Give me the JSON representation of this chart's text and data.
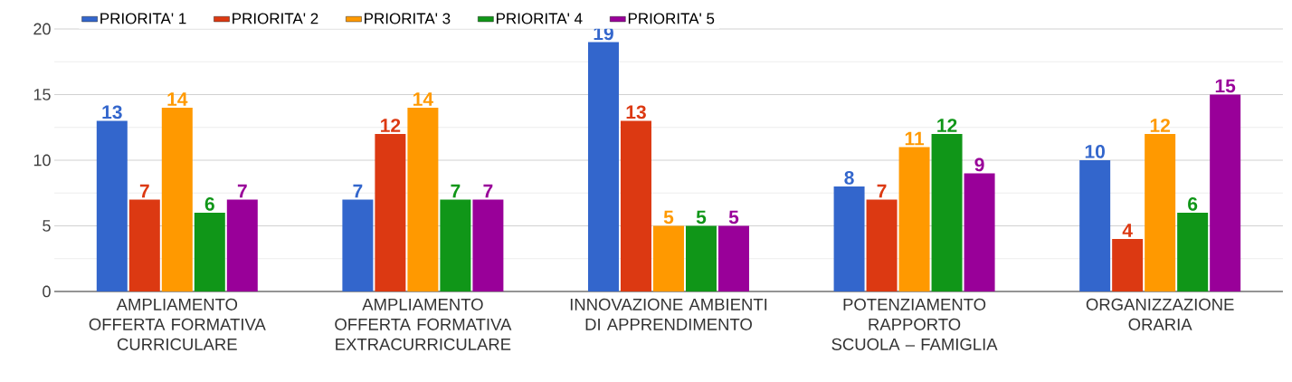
{
  "chart_data": {
    "type": "bar",
    "categories": [
      "AMPLIAMENTO OFFERTA FORMATIVA CURRICULARE",
      "AMPLIAMENTO OFFERTA FORMATIVA EXTRACURRICULARE",
      "INNOVAZIONE AMBIENTI DI APPRENDIMENTO",
      "POTENZIAMENTO RAPPORTO SCUOLA – FAMIGLIA",
      "ORGANIZZAZIONE ORARIA"
    ],
    "series": [
      {
        "name": "PRIORITA' 1",
        "color": "#3366cc",
        "values": [
          13,
          7,
          19,
          8,
          10
        ]
      },
      {
        "name": "PRIORITA' 2",
        "color": "#dc3912",
        "values": [
          7,
          12,
          13,
          7,
          4
        ]
      },
      {
        "name": "PRIORITA' 3",
        "color": "#ff9900",
        "values": [
          14,
          14,
          5,
          11,
          12
        ]
      },
      {
        "name": "PRIORITA' 4",
        "color": "#109618",
        "values": [
          6,
          7,
          5,
          12,
          6
        ]
      },
      {
        "name": "PRIORITA' 5",
        "color": "#990099",
        "values": [
          7,
          7,
          5,
          9,
          15
        ]
      }
    ],
    "ylim": [
      0,
      20
    ],
    "yticks": [
      0,
      5,
      10,
      15,
      20
    ],
    "grid": "y",
    "legend": "top",
    "data_labels": true
  }
}
